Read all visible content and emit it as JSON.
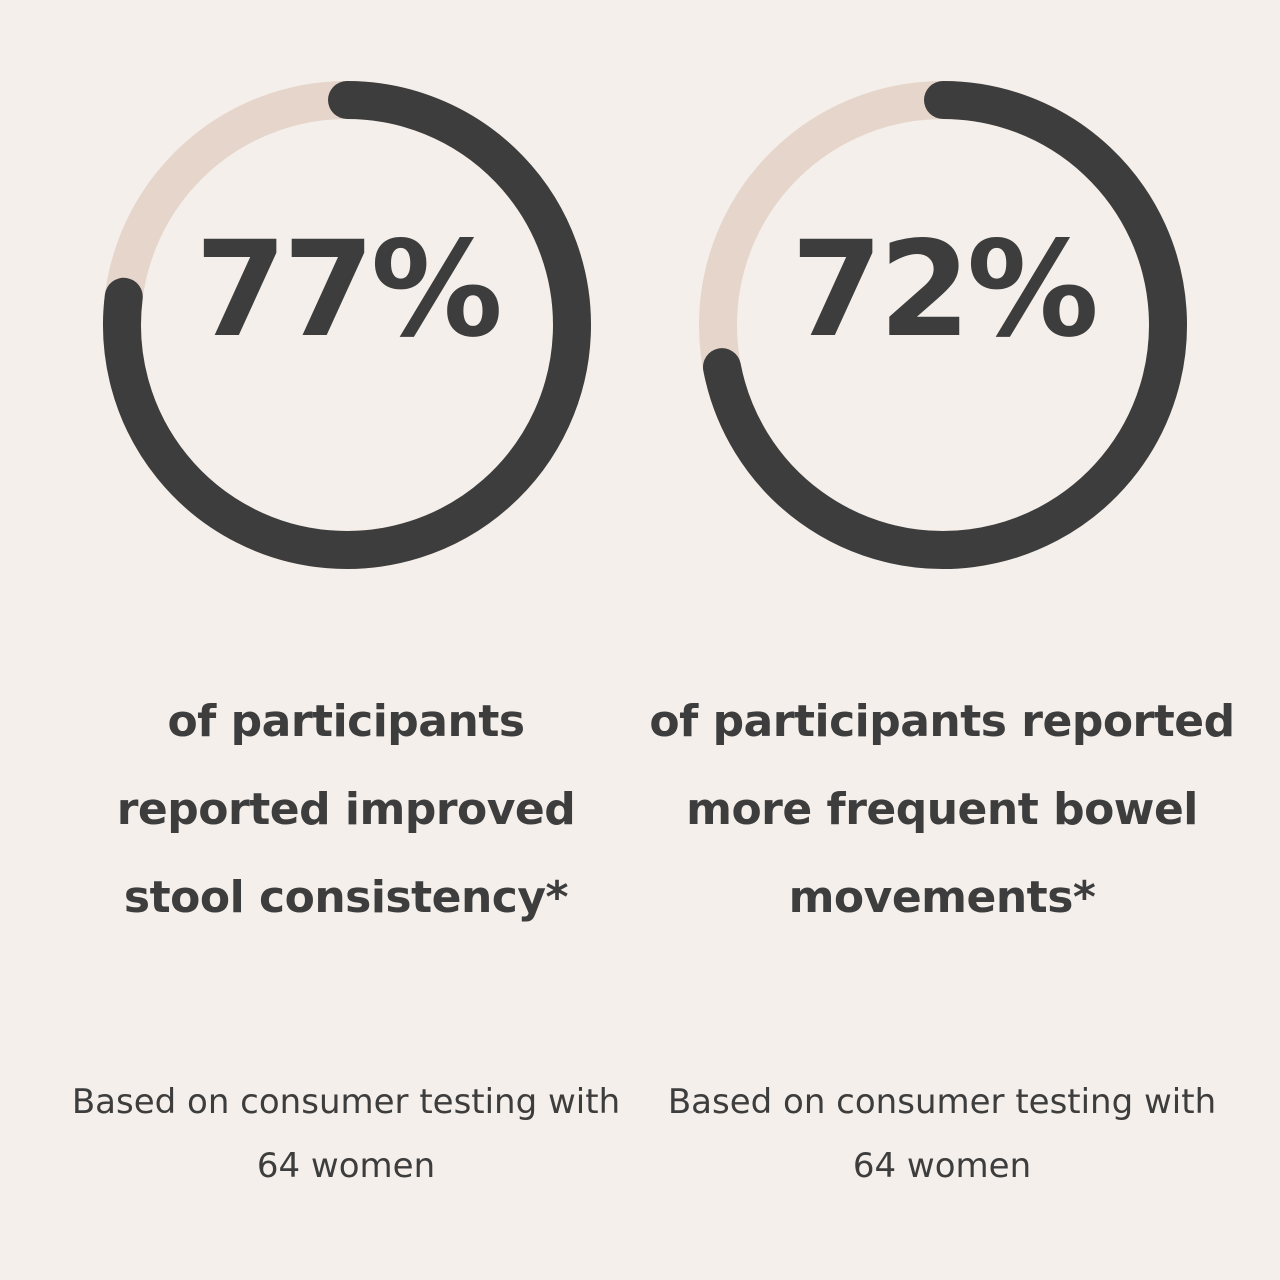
{
  "colors": {
    "background": "#f4efea",
    "track": "#e6d5ca",
    "fill": "#3d3d3d",
    "text": "#3d3d3d"
  },
  "chart_data": [
    {
      "type": "pie",
      "style": "progress-ring",
      "value_percent": 77,
      "label": "77%",
      "description_lines": [
        "of participants",
        "reported improved",
        "stool consistency*"
      ],
      "note_lines": [
        "Based on consumer testing with",
        "64 women"
      ]
    },
    {
      "type": "pie",
      "style": "progress-ring",
      "value_percent": 72,
      "label": "72%",
      "description_lines": [
        "of participants reported",
        "more frequent bowel",
        "movements*"
      ],
      "note_lines": [
        "Based on consumer testing with",
        "64 women"
      ]
    }
  ]
}
